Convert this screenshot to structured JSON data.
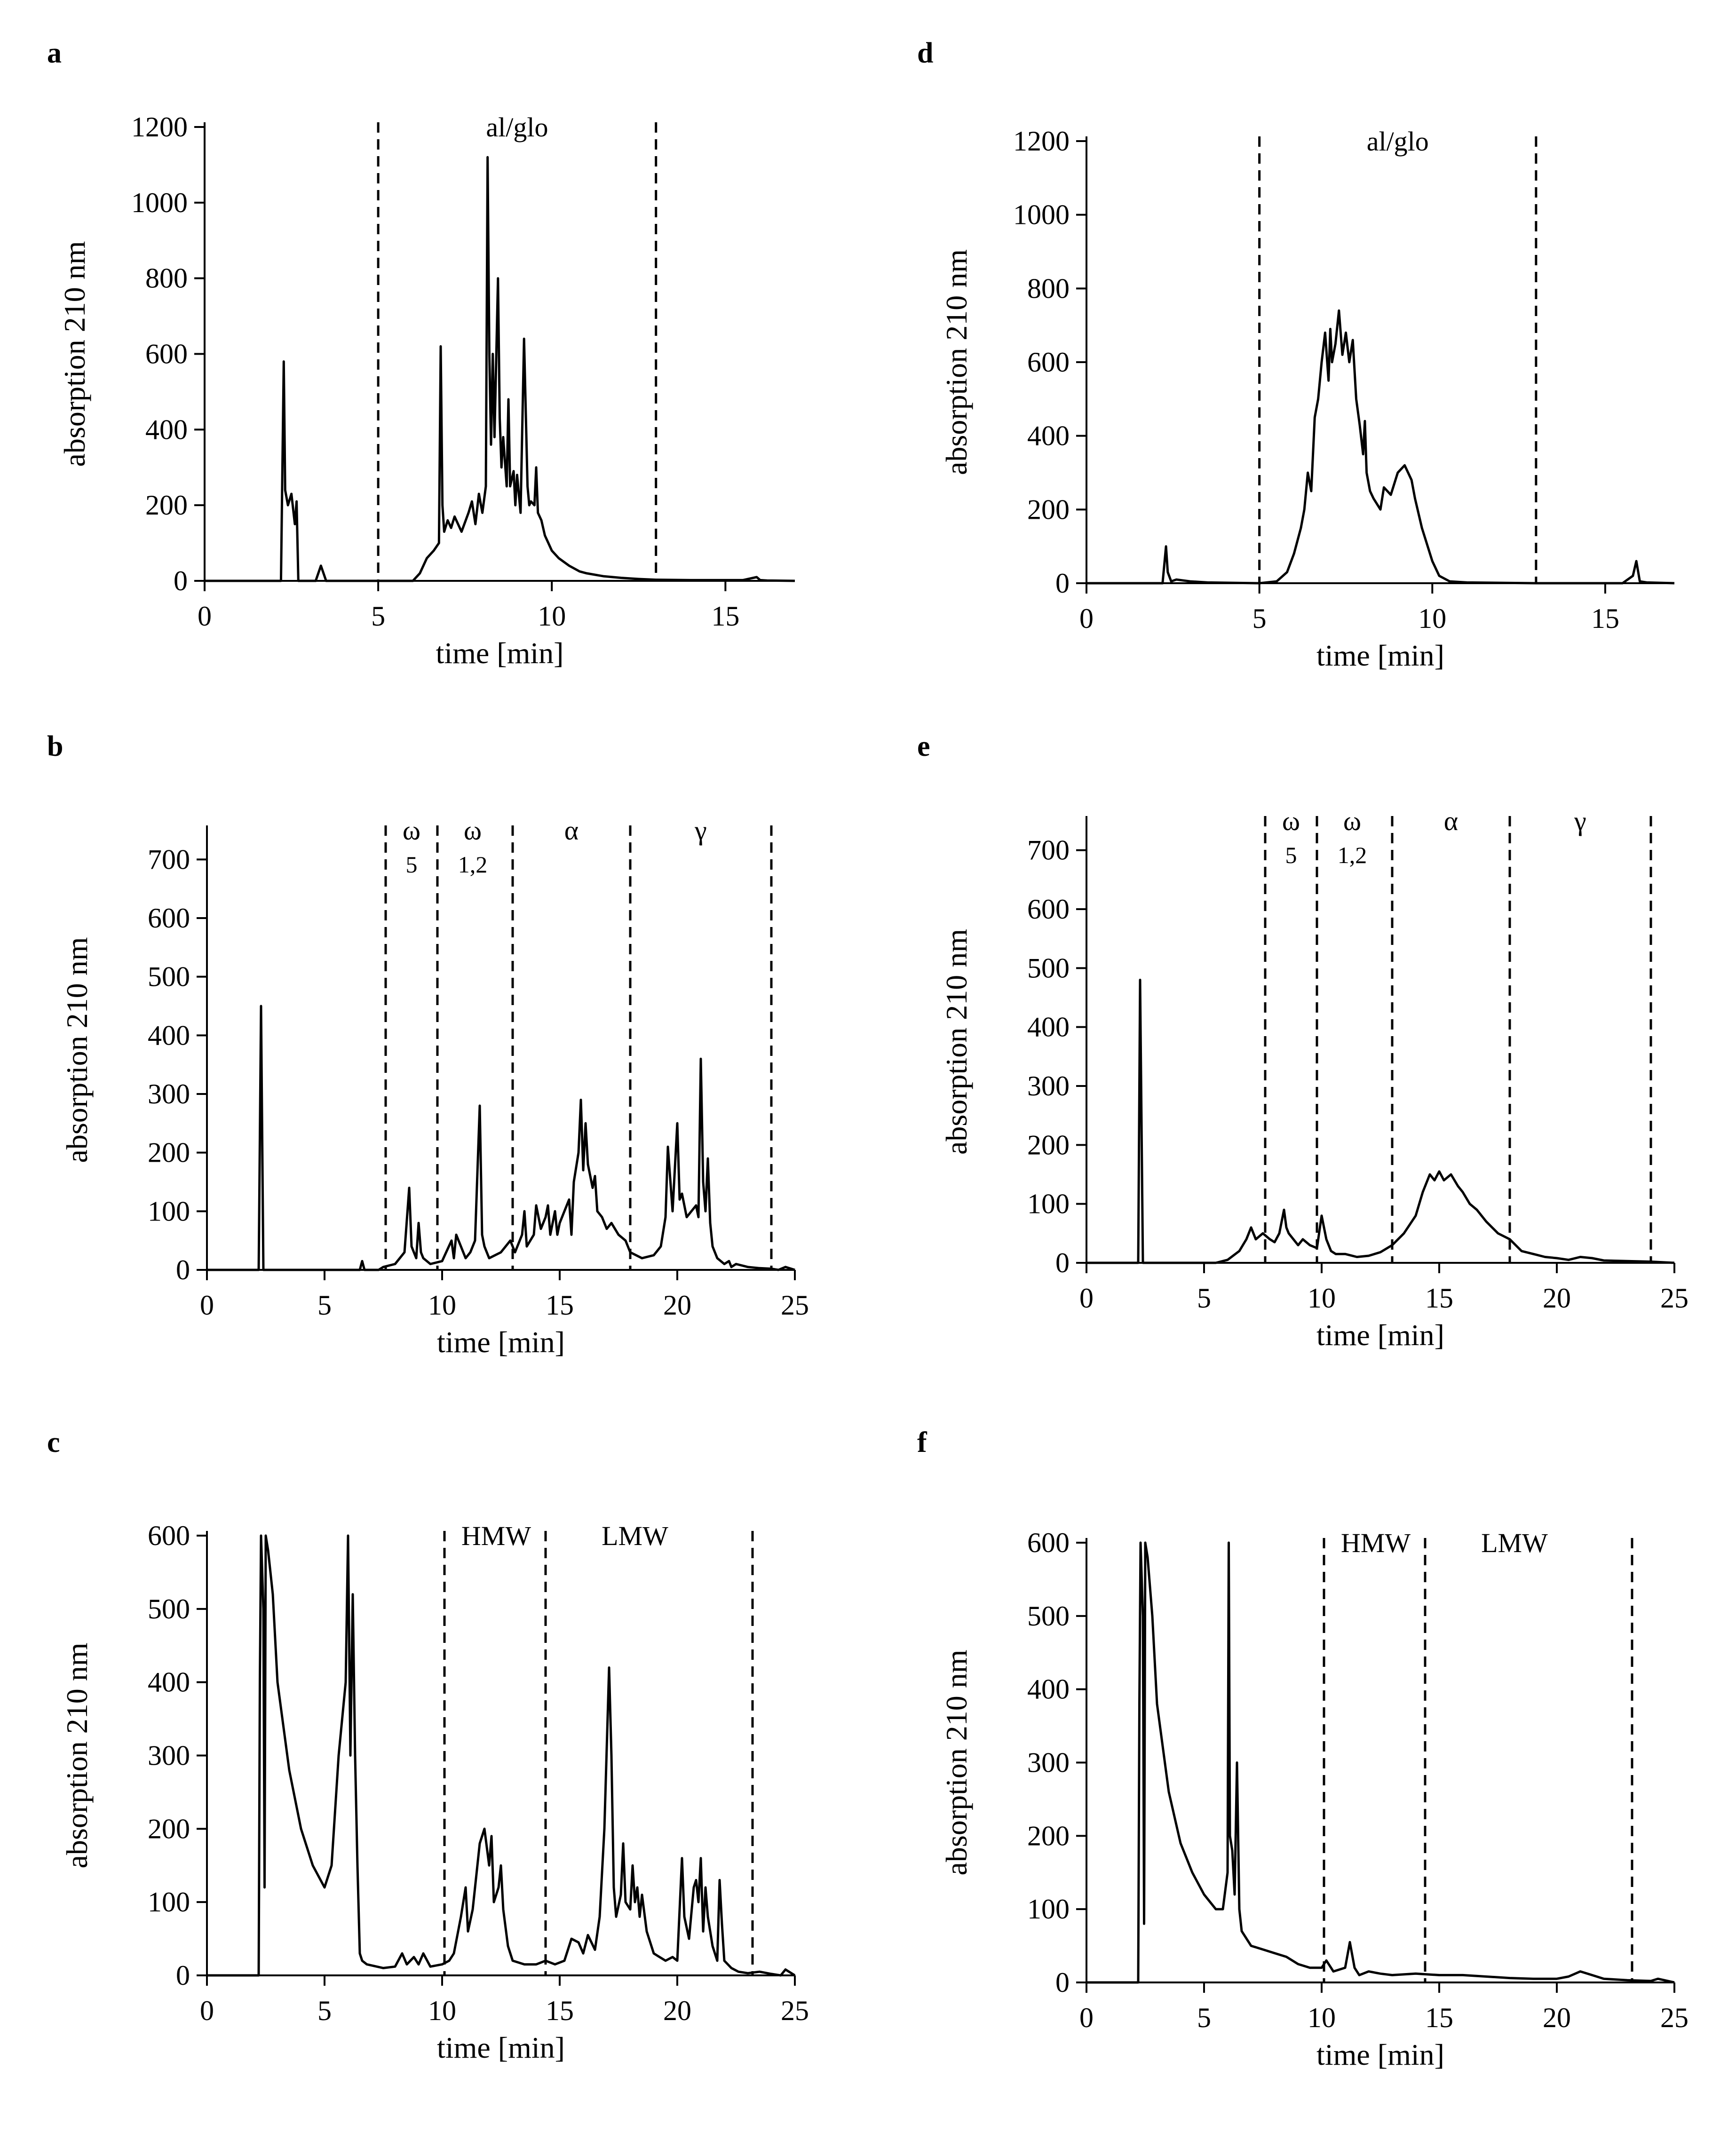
{
  "panel_letters": [
    "a",
    "b",
    "c",
    "d",
    "e",
    "f"
  ],
  "chart_data": [
    {
      "id": "a",
      "type": "line",
      "xlabel": "time [min]",
      "ylabel": "absorption 210 nm",
      "xlim": [
        0,
        17
      ],
      "ylim": [
        0,
        1200
      ],
      "xticks": [
        0,
        5,
        10,
        15
      ],
      "yticks": [
        0,
        200,
        400,
        600,
        800,
        1000,
        1200
      ],
      "dividers": [
        5,
        13
      ],
      "region_labels": [
        {
          "text": "al/glo",
          "x": 9,
          "sub": ""
        }
      ],
      "series": [
        {
          "name": "chromatogram",
          "x": [
            0,
            2.2,
            2.28,
            2.32,
            2.4,
            2.5,
            2.6,
            2.65,
            2.7,
            2.8,
            3.2,
            3.35,
            3.5,
            3.7,
            5,
            6,
            6.2,
            6.4,
            6.6,
            6.75,
            6.8,
            6.85,
            6.9,
            7,
            7.1,
            7.2,
            7.4,
            7.6,
            7.7,
            7.8,
            7.9,
            8,
            8.1,
            8.15,
            8.2,
            8.25,
            8.3,
            8.35,
            8.45,
            8.5,
            8.55,
            8.6,
            8.7,
            8.75,
            8.8,
            8.9,
            8.95,
            9,
            9.1,
            9.2,
            9.3,
            9.35,
            9.4,
            9.5,
            9.55,
            9.6,
            9.7,
            9.75,
            9.8,
            9.9,
            10,
            10.2,
            10.5,
            10.8,
            11,
            11.5,
            12,
            12.5,
            13,
            14,
            15.5,
            15.9,
            16,
            16.2,
            17
          ],
          "y": [
            0,
            0,
            580,
            240,
            200,
            230,
            150,
            210,
            0,
            0,
            0,
            40,
            0,
            0,
            0,
            0,
            20,
            60,
            80,
            100,
            620,
            200,
            130,
            160,
            140,
            170,
            130,
            180,
            210,
            150,
            230,
            180,
            250,
            1120,
            600,
            360,
            600,
            380,
            800,
            430,
            300,
            380,
            250,
            480,
            250,
            290,
            200,
            280,
            180,
            640,
            250,
            200,
            210,
            200,
            300,
            180,
            160,
            140,
            120,
            100,
            80,
            60,
            40,
            25,
            20,
            12,
            8,
            5,
            3,
            2,
            2,
            10,
            2,
            1,
            0
          ]
        }
      ]
    },
    {
      "id": "b",
      "type": "line",
      "xlabel": "time [min]",
      "ylabel": "absorption 210 nm",
      "xlim": [
        0,
        25
      ],
      "ylim": [
        0,
        750
      ],
      "xticks": [
        0,
        5,
        10,
        15,
        20,
        25
      ],
      "yticks": [
        0,
        100,
        200,
        300,
        400,
        500,
        600,
        700
      ],
      "dividers": [
        7.6,
        9.8,
        13,
        18,
        24
      ],
      "region_labels": [
        {
          "text": "ω",
          "x": 8.7,
          "sub": "5"
        },
        {
          "text": "ω",
          "x": 11.3,
          "sub": "1,2"
        },
        {
          "text": "α",
          "x": 15.5,
          "sub": ""
        },
        {
          "text": "γ",
          "x": 21,
          "sub": ""
        }
      ],
      "series": [
        {
          "name": "chromatogram",
          "x": [
            0,
            2.2,
            2.3,
            2.4,
            2.5,
            6.5,
            6.6,
            6.7,
            7.3,
            7.5,
            8,
            8.4,
            8.6,
            8.7,
            8.9,
            9,
            9.1,
            9.2,
            9.5,
            10,
            10.4,
            10.5,
            10.6,
            10.8,
            11,
            11.2,
            11.4,
            11.6,
            11.7,
            11.8,
            12,
            12.5,
            12.9,
            13.1,
            13.4,
            13.5,
            13.6,
            13.9,
            14,
            14.2,
            14.4,
            14.5,
            14.6,
            14.8,
            14.9,
            15,
            15.2,
            15.4,
            15.5,
            15.6,
            15.8,
            15.9,
            16,
            16.1,
            16.2,
            16.4,
            16.5,
            16.6,
            16.8,
            17,
            17.2,
            17.5,
            17.8,
            18,
            18.5,
            19,
            19.3,
            19.5,
            19.6,
            19.8,
            20,
            20.1,
            20.2,
            20.4,
            20.6,
            20.8,
            20.9,
            21,
            21.1,
            21.2,
            21.3,
            21.4,
            21.5,
            21.7,
            22,
            22.2,
            22.3,
            22.5,
            23,
            23.5,
            24,
            24.3,
            24.6,
            25
          ],
          "y": [
            0,
            0,
            450,
            0,
            0,
            0,
            15,
            0,
            0,
            5,
            10,
            30,
            140,
            40,
            20,
            80,
            30,
            20,
            10,
            15,
            50,
            20,
            60,
            40,
            20,
            30,
            50,
            280,
            60,
            40,
            20,
            30,
            50,
            30,
            60,
            100,
            40,
            60,
            110,
            70,
            90,
            110,
            60,
            100,
            60,
            80,
            100,
            120,
            60,
            150,
            200,
            290,
            170,
            250,
            180,
            140,
            160,
            100,
            90,
            70,
            80,
            60,
            50,
            30,
            20,
            25,
            40,
            90,
            210,
            100,
            250,
            120,
            130,
            90,
            100,
            110,
            90,
            360,
            150,
            100,
            190,
            80,
            40,
            20,
            10,
            15,
            5,
            10,
            5,
            3,
            2,
            0,
            5,
            0
          ]
        }
      ]
    },
    {
      "id": "c",
      "type": "line",
      "xlabel": "time [min]",
      "ylabel": "absorption 210 nm",
      "xlim": [
        0,
        25
      ],
      "ylim": [
        0,
        600
      ],
      "xticks": [
        0,
        5,
        10,
        15,
        20,
        25
      ],
      "yticks": [
        0,
        100,
        200,
        300,
        400,
        500,
        600
      ],
      "dividers": [
        10.1,
        14.4,
        23.2
      ],
      "region_labels": [
        {
          "text": "HMW",
          "x": 12.3,
          "sub": ""
        },
        {
          "text": "LMW",
          "x": 18.2,
          "sub": ""
        }
      ],
      "series": [
        {
          "name": "chromatogram",
          "x": [
            0,
            2.2,
            2.25,
            2.3,
            2.4,
            2.45,
            2.5,
            2.6,
            2.8,
            3,
            3.5,
            4,
            4.5,
            5,
            5.3,
            5.6,
            5.9,
            6,
            6.1,
            6.2,
            6.3,
            6.4,
            6.5,
            6.6,
            6.8,
            7.5,
            8,
            8.3,
            8.5,
            8.8,
            9,
            9.2,
            9.5,
            10,
            10.3,
            10.5,
            10.8,
            11,
            11.1,
            11.3,
            11.6,
            11.8,
            12,
            12.1,
            12.2,
            12.4,
            12.5,
            12.6,
            12.8,
            13,
            13.5,
            14,
            14.4,
            14.8,
            15.2,
            15.5,
            15.8,
            16,
            16.2,
            16.5,
            16.7,
            16.9,
            17.1,
            17.2,
            17.3,
            17.4,
            17.6,
            17.7,
            17.8,
            18,
            18.1,
            18.2,
            18.3,
            18.4,
            18.5,
            18.7,
            19,
            19.5,
            19.8,
            20,
            20.2,
            20.3,
            20.5,
            20.7,
            20.8,
            20.9,
            21,
            21.1,
            21.2,
            21.3,
            21.5,
            21.7,
            21.8,
            21.9,
            22,
            22.3,
            22.6,
            23,
            23.5,
            24,
            24.4,
            24.6,
            25
          ],
          "y": [
            0,
            0,
            400,
            600,
            500,
            120,
            600,
            580,
            520,
            400,
            280,
            200,
            150,
            120,
            150,
            300,
            400,
            600,
            300,
            520,
            300,
            150,
            30,
            20,
            15,
            10,
            12,
            30,
            15,
            25,
            15,
            30,
            12,
            15,
            20,
            30,
            80,
            120,
            60,
            90,
            180,
            200,
            150,
            190,
            100,
            120,
            150,
            90,
            40,
            20,
            15,
            15,
            20,
            15,
            20,
            50,
            45,
            30,
            55,
            35,
            80,
            200,
            420,
            300,
            120,
            80,
            110,
            180,
            100,
            90,
            150,
            100,
            120,
            80,
            110,
            60,
            30,
            20,
            25,
            20,
            160,
            80,
            50,
            120,
            130,
            100,
            160,
            60,
            120,
            80,
            40,
            20,
            130,
            70,
            20,
            10,
            5,
            3,
            5,
            2,
            0,
            8,
            0
          ]
        }
      ]
    },
    {
      "id": "d",
      "type": "line",
      "xlabel": "time [min]",
      "ylabel": "absorption 210 nm",
      "xlim": [
        0,
        17
      ],
      "ylim": [
        0,
        1200
      ],
      "xticks": [
        0,
        5,
        10,
        15
      ],
      "yticks": [
        0,
        200,
        400,
        600,
        800,
        1000,
        1200
      ],
      "dividers": [
        5,
        13
      ],
      "region_labels": [
        {
          "text": "al/glo",
          "x": 9,
          "sub": ""
        }
      ],
      "series": [
        {
          "name": "chromatogram",
          "x": [
            0,
            2.2,
            2.3,
            2.35,
            2.45,
            2.6,
            3,
            3.5,
            5,
            5.5,
            5.8,
            6,
            6.2,
            6.3,
            6.4,
            6.5,
            6.6,
            6.7,
            6.8,
            6.9,
            7,
            7.05,
            7.1,
            7.2,
            7.3,
            7.4,
            7.5,
            7.6,
            7.7,
            7.8,
            7.9,
            8,
            8.05,
            8.1,
            8.2,
            8.3,
            8.5,
            8.6,
            8.8,
            9,
            9.2,
            9.4,
            9.5,
            9.7,
            10,
            10.2,
            10.5,
            11,
            13,
            15.5,
            15.8,
            15.9,
            16,
            16.2,
            17
          ],
          "y": [
            0,
            0,
            100,
            30,
            5,
            10,
            5,
            2,
            0,
            5,
            30,
            80,
            150,
            200,
            300,
            250,
            450,
            500,
            600,
            680,
            550,
            690,
            600,
            650,
            740,
            620,
            680,
            600,
            660,
            500,
            430,
            350,
            440,
            300,
            250,
            230,
            200,
            260,
            240,
            300,
            320,
            280,
            230,
            150,
            60,
            20,
            5,
            2,
            0,
            0,
            20,
            60,
            5,
            2,
            0
          ]
        }
      ]
    },
    {
      "id": "e",
      "type": "line",
      "xlabel": "time [min]",
      "ylabel": "absorption 210 nm",
      "xlim": [
        0,
        25
      ],
      "ylim": [
        0,
        750
      ],
      "xticks": [
        0,
        5,
        10,
        15,
        20,
        25
      ],
      "yticks": [
        0,
        100,
        200,
        300,
        400,
        500,
        600,
        700
      ],
      "dividers": [
        7.6,
        9.8,
        13,
        18,
        24
      ],
      "region_labels": [
        {
          "text": "ω",
          "x": 8.7,
          "sub": "5"
        },
        {
          "text": "ω",
          "x": 11.3,
          "sub": "1,2"
        },
        {
          "text": "α",
          "x": 15.5,
          "sub": ""
        },
        {
          "text": "γ",
          "x": 21,
          "sub": ""
        }
      ],
      "series": [
        {
          "name": "chromatogram",
          "x": [
            0,
            2.2,
            2.28,
            2.4,
            2.5,
            5.5,
            6,
            6.5,
            6.8,
            7,
            7.2,
            7.5,
            7.8,
            8,
            8.2,
            8.4,
            8.5,
            8.6,
            8.8,
            9,
            9.2,
            9.5,
            9.8,
            10,
            10.2,
            10.4,
            10.6,
            11,
            11.5,
            12,
            12.5,
            13,
            13.5,
            14,
            14.3,
            14.6,
            14.8,
            15,
            15.2,
            15.5,
            15.8,
            16,
            16.3,
            16.6,
            17,
            17.5,
            18,
            18.5,
            19,
            19.5,
            20,
            20.5,
            21,
            21.5,
            22,
            23,
            24,
            25
          ],
          "y": [
            0,
            0,
            480,
            0,
            0,
            0,
            5,
            20,
            40,
            60,
            40,
            50,
            40,
            35,
            50,
            90,
            60,
            50,
            40,
            30,
            40,
            30,
            25,
            80,
            40,
            20,
            15,
            15,
            10,
            12,
            18,
            30,
            50,
            80,
            120,
            150,
            140,
            155,
            140,
            150,
            130,
            120,
            100,
            90,
            70,
            50,
            40,
            20,
            15,
            10,
            8,
            5,
            10,
            8,
            4,
            3,
            2,
            0
          ]
        }
      ]
    },
    {
      "id": "f",
      "type": "line",
      "xlabel": "time [min]",
      "ylabel": "absorption 210 nm",
      "xlim": [
        0,
        25
      ],
      "ylim": [
        0,
        600
      ],
      "xticks": [
        0,
        5,
        10,
        15,
        20,
        25
      ],
      "yticks": [
        0,
        100,
        200,
        300,
        400,
        500,
        600
      ],
      "dividers": [
        10.1,
        14.4,
        23.2
      ],
      "region_labels": [
        {
          "text": "HMW",
          "x": 12.3,
          "sub": ""
        },
        {
          "text": "LMW",
          "x": 18.2,
          "sub": ""
        }
      ],
      "series": [
        {
          "name": "chromatogram",
          "x": [
            0,
            2.2,
            2.25,
            2.3,
            2.4,
            2.45,
            2.5,
            2.6,
            2.8,
            3,
            3.5,
            4,
            4.5,
            5,
            5.5,
            5.8,
            6,
            6.05,
            6.1,
            6.2,
            6.3,
            6.4,
            6.5,
            6.6,
            6.8,
            7,
            7.5,
            8,
            8.5,
            9,
            9.5,
            10,
            10.2,
            10.5,
            11,
            11.2,
            11.4,
            11.6,
            12,
            12.5,
            13,
            14,
            15,
            16,
            17,
            18,
            19,
            20,
            20.5,
            21,
            21.5,
            22,
            23,
            24,
            24.3,
            25
          ],
          "y": [
            0,
            0,
            380,
            600,
            500,
            80,
            600,
            580,
            500,
            380,
            260,
            190,
            150,
            120,
            100,
            100,
            150,
            600,
            200,
            180,
            120,
            300,
            100,
            70,
            60,
            50,
            45,
            40,
            35,
            25,
            20,
            20,
            30,
            15,
            20,
            55,
            20,
            10,
            15,
            12,
            10,
            12,
            10,
            10,
            8,
            6,
            5,
            5,
            8,
            15,
            10,
            5,
            3,
            2,
            5,
            0
          ]
        }
      ]
    }
  ]
}
